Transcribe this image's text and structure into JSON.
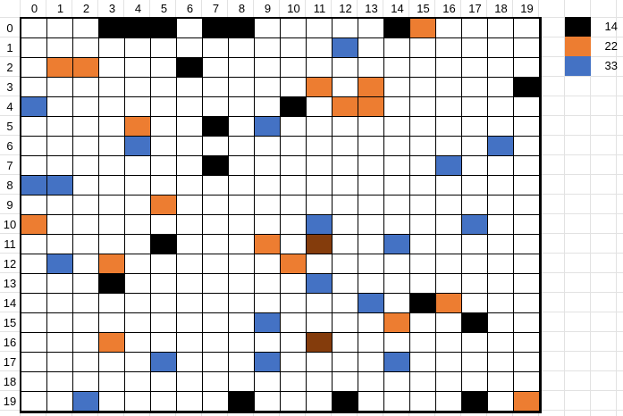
{
  "columns": [
    "0",
    "1",
    "2",
    "3",
    "4",
    "5",
    "6",
    "7",
    "8",
    "9",
    "10",
    "11",
    "12",
    "13",
    "14",
    "15",
    "16",
    "17",
    "18",
    "19"
  ],
  "rows": [
    "0",
    "1",
    "2",
    "3",
    "4",
    "5",
    "6",
    "7",
    "8",
    "9",
    "10",
    "11",
    "12",
    "13",
    "14",
    "15",
    "16",
    "17",
    "18",
    "19"
  ],
  "colors": {
    "black": "#000000",
    "orange": "#ED7D31",
    "blue": "#4472C4",
    "brown": "#843C0C",
    "white": "#FFFFFF"
  },
  "legend": [
    {
      "label": "14",
      "color": "#000000"
    },
    {
      "label": "22",
      "color": "#ED7D31"
    },
    {
      "label": "33",
      "color": "#4472C4"
    }
  ],
  "filled_cells": [
    {
      "row": 0,
      "col": 3,
      "color": "black"
    },
    {
      "row": 0,
      "col": 4,
      "color": "black"
    },
    {
      "row": 0,
      "col": 5,
      "color": "black"
    },
    {
      "row": 0,
      "col": 7,
      "color": "black"
    },
    {
      "row": 0,
      "col": 8,
      "color": "black"
    },
    {
      "row": 0,
      "col": 14,
      "color": "black"
    },
    {
      "row": 0,
      "col": 15,
      "color": "orange"
    },
    {
      "row": 1,
      "col": 12,
      "color": "blue"
    },
    {
      "row": 2,
      "col": 1,
      "color": "orange"
    },
    {
      "row": 2,
      "col": 2,
      "color": "orange"
    },
    {
      "row": 2,
      "col": 6,
      "color": "black"
    },
    {
      "row": 3,
      "col": 11,
      "color": "orange"
    },
    {
      "row": 3,
      "col": 13,
      "color": "orange"
    },
    {
      "row": 3,
      "col": 19,
      "color": "black"
    },
    {
      "row": 4,
      "col": 0,
      "color": "blue"
    },
    {
      "row": 4,
      "col": 10,
      "color": "black"
    },
    {
      "row": 4,
      "col": 12,
      "color": "orange"
    },
    {
      "row": 4,
      "col": 13,
      "color": "orange"
    },
    {
      "row": 5,
      "col": 4,
      "color": "orange"
    },
    {
      "row": 5,
      "col": 7,
      "color": "black"
    },
    {
      "row": 5,
      "col": 9,
      "color": "blue"
    },
    {
      "row": 6,
      "col": 4,
      "color": "blue"
    },
    {
      "row": 6,
      "col": 18,
      "color": "blue"
    },
    {
      "row": 7,
      "col": 7,
      "color": "black"
    },
    {
      "row": 7,
      "col": 16,
      "color": "blue"
    },
    {
      "row": 8,
      "col": 0,
      "color": "blue"
    },
    {
      "row": 8,
      "col": 1,
      "color": "blue"
    },
    {
      "row": 9,
      "col": 5,
      "color": "orange"
    },
    {
      "row": 10,
      "col": 0,
      "color": "orange"
    },
    {
      "row": 10,
      "col": 11,
      "color": "blue"
    },
    {
      "row": 10,
      "col": 17,
      "color": "blue"
    },
    {
      "row": 11,
      "col": 5,
      "color": "black"
    },
    {
      "row": 11,
      "col": 9,
      "color": "orange"
    },
    {
      "row": 11,
      "col": 11,
      "color": "brown"
    },
    {
      "row": 11,
      "col": 14,
      "color": "blue"
    },
    {
      "row": 12,
      "col": 1,
      "color": "blue"
    },
    {
      "row": 12,
      "col": 3,
      "color": "orange"
    },
    {
      "row": 12,
      "col": 10,
      "color": "orange"
    },
    {
      "row": 13,
      "col": 3,
      "color": "black"
    },
    {
      "row": 13,
      "col": 11,
      "color": "blue"
    },
    {
      "row": 14,
      "col": 13,
      "color": "blue"
    },
    {
      "row": 14,
      "col": 15,
      "color": "black"
    },
    {
      "row": 14,
      "col": 16,
      "color": "orange"
    },
    {
      "row": 15,
      "col": 9,
      "color": "blue"
    },
    {
      "row": 15,
      "col": 14,
      "color": "orange"
    },
    {
      "row": 15,
      "col": 17,
      "color": "black"
    },
    {
      "row": 16,
      "col": 3,
      "color": "orange"
    },
    {
      "row": 16,
      "col": 11,
      "color": "brown"
    },
    {
      "row": 17,
      "col": 5,
      "color": "blue"
    },
    {
      "row": 17,
      "col": 9,
      "color": "blue"
    },
    {
      "row": 17,
      "col": 14,
      "color": "blue"
    },
    {
      "row": 19,
      "col": 2,
      "color": "blue"
    },
    {
      "row": 19,
      "col": 8,
      "color": "black"
    },
    {
      "row": 19,
      "col": 12,
      "color": "black"
    },
    {
      "row": 19,
      "col": 17,
      "color": "black"
    },
    {
      "row": 19,
      "col": 19,
      "color": "orange"
    }
  ]
}
